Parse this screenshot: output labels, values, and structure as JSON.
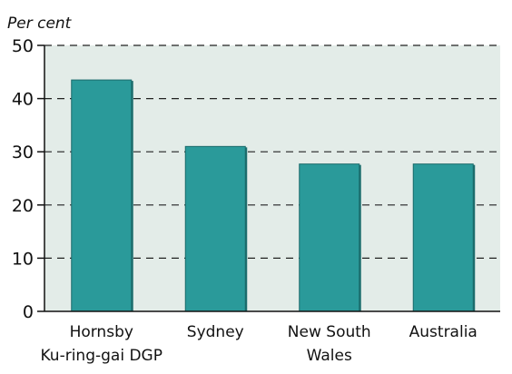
{
  "chart_data": {
    "type": "bar",
    "title": "",
    "xlabel": "",
    "ylabel": "Per cent",
    "ylim": [
      0,
      50
    ],
    "yticks": [
      0,
      10,
      20,
      30,
      40,
      50
    ],
    "grid": true,
    "categories": [
      [
        "Hornsby",
        "Ku-ring-gai DGP"
      ],
      [
        "Sydney"
      ],
      [
        "New South",
        "Wales"
      ],
      [
        "Australia"
      ]
    ],
    "values": [
      43.5,
      31,
      27.7,
      27.7
    ],
    "colors": {
      "bar": "#2a9a9a",
      "plot_background": "#e3ece8",
      "grid": "#222222",
      "axis": "#111111"
    }
  }
}
